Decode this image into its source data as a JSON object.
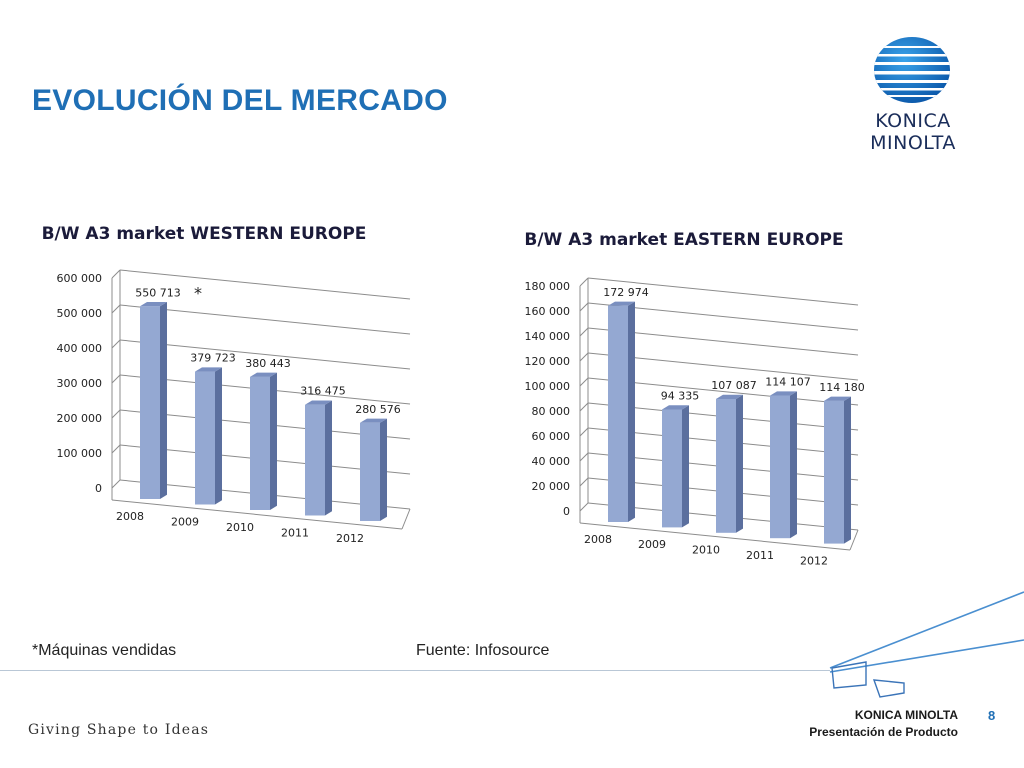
{
  "slide": {
    "title": "EVOLUCIÓN DEL MERCADO",
    "brand": "KONICA MINOLTA",
    "footnote": "*Máquinas vendidas",
    "source": "Fuente: Infosource",
    "tagline": "Giving Shape to Ideas",
    "footer_brand": "KONICA MINOLTA",
    "footer_subtitle": "Presentación de Producto",
    "page_number": "8"
  },
  "colors": {
    "title": "#1f6fb5",
    "bar_front": "#94a8d2",
    "bar_side": "#5b6f9e",
    "bar_top": "#7a8fc0",
    "grid": "#8c8c8c"
  },
  "chart_data": [
    {
      "type": "bar",
      "title": "B/W A3 market WESTERN EUROPE",
      "categories": [
        "2008",
        "2009",
        "2010",
        "2011",
        "2012"
      ],
      "values": [
        550713,
        379723,
        380443,
        316475,
        280576
      ],
      "value_labels": [
        "550 713",
        "379 723",
        "380 443",
        "316 475",
        "280 576"
      ],
      "marker": "*",
      "ylim": [
        0,
        600000
      ],
      "yticks": [
        0,
        100000,
        200000,
        300000,
        400000,
        500000,
        600000
      ],
      "ytick_labels": [
        "0",
        "100 000",
        "200 000",
        "300 000",
        "400 000",
        "500 000",
        "600 000"
      ],
      "grid": true,
      "legend": "none"
    },
    {
      "type": "bar",
      "title": "B/W A3 market EASTERN EUROPE",
      "categories": [
        "2008",
        "2009",
        "2010",
        "2011",
        "2012"
      ],
      "values": [
        172974,
        94335,
        107087,
        114107,
        114180
      ],
      "value_labels": [
        "172 974",
        "94 335",
        "107 087",
        "114 107",
        "114 180"
      ],
      "ylim": [
        0,
        180000
      ],
      "yticks": [
        0,
        20000,
        40000,
        60000,
        80000,
        100000,
        120000,
        140000,
        160000,
        180000
      ],
      "ytick_labels": [
        "0",
        "20 000",
        "40 000",
        "60 000",
        "80 000",
        "100 000",
        "120 000",
        "140 000",
        "160 000",
        "180 000"
      ],
      "grid": true,
      "legend": "none"
    }
  ]
}
